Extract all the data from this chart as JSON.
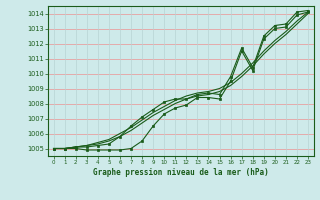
{
  "title": "Graphe pression niveau de la mer (hPa)",
  "bg_color": "#ceeaea",
  "grid_color_h": "#e8a0a0",
  "grid_color_v": "#b8d4d4",
  "line_color": "#1a5c1a",
  "marker_color": "#1a5c1a",
  "ylim": [
    1004.5,
    1014.5
  ],
  "yticks": [
    1005,
    1006,
    1007,
    1008,
    1009,
    1010,
    1011,
    1012,
    1013,
    1014
  ],
  "xlim": [
    -0.5,
    23.5
  ],
  "xticks": [
    0,
    1,
    2,
    3,
    4,
    5,
    6,
    7,
    8,
    9,
    10,
    11,
    12,
    13,
    14,
    15,
    16,
    17,
    18,
    19,
    20,
    21,
    22,
    23
  ],
  "series_smooth": [
    [
      1005.0,
      1005.0,
      1005.1,
      1005.2,
      1005.3,
      1005.5,
      1005.8,
      1006.2,
      1006.7,
      1007.2,
      1007.6,
      1008.0,
      1008.3,
      1008.5,
      1008.6,
      1008.8,
      1009.2,
      1009.8,
      1010.5,
      1011.3,
      1012.0,
      1012.6,
      1013.3,
      1014.0
    ],
    [
      1005.0,
      1005.0,
      1005.1,
      1005.2,
      1005.4,
      1005.6,
      1006.0,
      1006.4,
      1006.9,
      1007.4,
      1007.8,
      1008.2,
      1008.5,
      1008.7,
      1008.8,
      1009.0,
      1009.4,
      1010.0,
      1010.7,
      1011.5,
      1012.2,
      1012.8,
      1013.5,
      1014.1
    ]
  ],
  "series_marked": [
    [
      1005.0,
      1005.0,
      1005.0,
      1004.9,
      1004.9,
      1004.9,
      1004.9,
      1005.0,
      1005.5,
      1006.5,
      1007.3,
      1007.7,
      1007.9,
      1008.4,
      1008.4,
      1008.3,
      1009.5,
      1011.5,
      1010.2,
      1012.3,
      1013.0,
      1013.1,
      1013.9,
      1014.1
    ],
    [
      1005.0,
      1005.0,
      1005.1,
      1005.1,
      1005.2,
      1005.3,
      1005.8,
      1006.5,
      1007.1,
      1007.6,
      1008.1,
      1008.3,
      1008.3,
      1008.6,
      1008.7,
      1008.6,
      1009.8,
      1011.7,
      1010.4,
      1012.5,
      1013.2,
      1013.3,
      1014.1,
      1014.2
    ]
  ]
}
